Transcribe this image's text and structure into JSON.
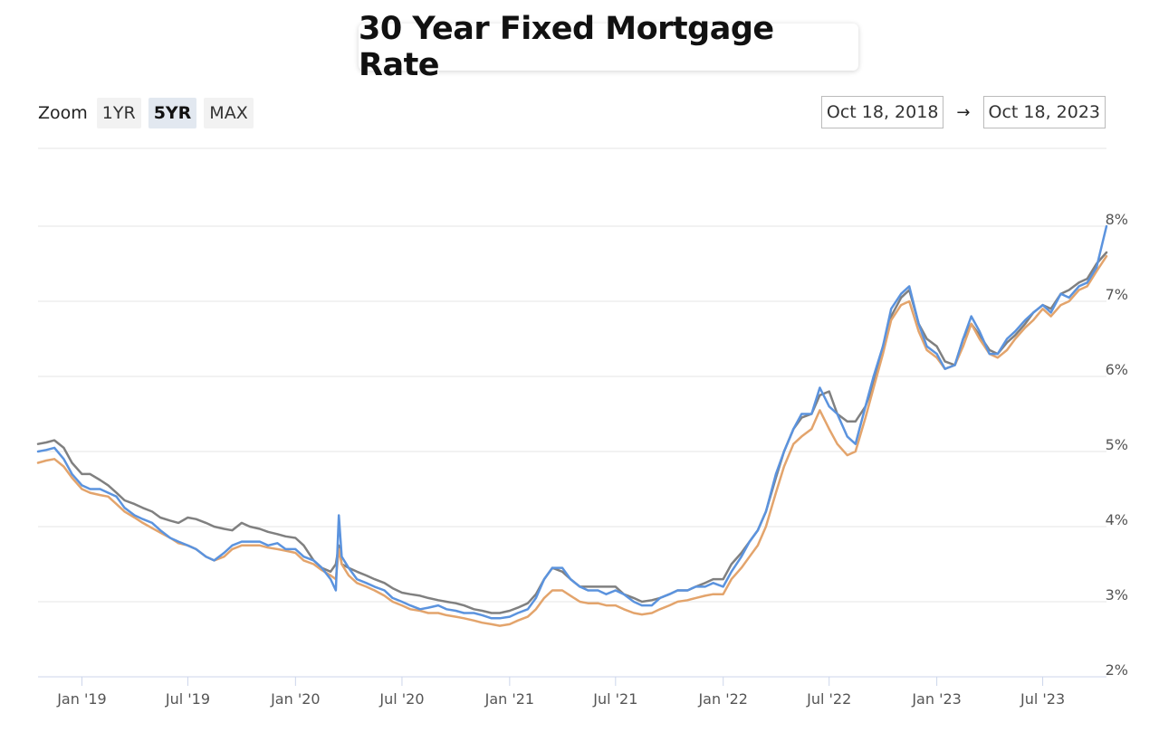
{
  "title": "30 Year Fixed Mortgage Rate",
  "zoom": {
    "label": "Zoom",
    "options": [
      "1YR",
      "5YR",
      "MAX"
    ],
    "selected": "5YR"
  },
  "range": {
    "from": "Oct 18, 2018",
    "arrow": "→",
    "to": "Oct 18, 2023"
  },
  "chart_data": {
    "type": "line",
    "title": "30 Year Fixed Mortgage Rate",
    "xlabel": "",
    "ylabel": "",
    "ylim": [
      2,
      8
    ],
    "y_ticks": [
      2,
      3,
      4,
      5,
      6,
      7,
      8
    ],
    "y_tick_labels": [
      "2%",
      "3%",
      "4%",
      "5%",
      "6%",
      "7%",
      "8%"
    ],
    "x_ticks": [
      "2019-01-01",
      "2019-07-01",
      "2020-01-01",
      "2020-07-01",
      "2021-01-01",
      "2021-07-01",
      "2022-01-01",
      "2022-07-01",
      "2023-01-01",
      "2023-07-01"
    ],
    "x_tick_labels": [
      "Jan '19",
      "Jul '19",
      "Jan '20",
      "Jul '20",
      "Jan '21",
      "Jul '21",
      "Jan '22",
      "Jul '22",
      "Jan '23",
      "Jul '23"
    ],
    "xlim": [
      "2018-10-18",
      "2023-10-18"
    ],
    "grid": true,
    "legend": "none",
    "series": [
      {
        "color": "#5b93de",
        "x": [
          "2018-10-18",
          "2018-11-01",
          "2018-11-15",
          "2018-12-01",
          "2018-12-15",
          "2019-01-01",
          "2019-01-15",
          "2019-02-01",
          "2019-02-15",
          "2019-03-01",
          "2019-03-15",
          "2019-04-01",
          "2019-04-15",
          "2019-05-01",
          "2019-05-15",
          "2019-06-01",
          "2019-06-15",
          "2019-07-01",
          "2019-07-15",
          "2019-08-01",
          "2019-08-15",
          "2019-09-01",
          "2019-09-15",
          "2019-10-01",
          "2019-10-15",
          "2019-11-01",
          "2019-11-15",
          "2019-12-01",
          "2019-12-15",
          "2020-01-01",
          "2020-01-15",
          "2020-02-01",
          "2020-02-15",
          "2020-03-01",
          "2020-03-10",
          "2020-03-15",
          "2020-03-20",
          "2020-04-01",
          "2020-04-15",
          "2020-05-01",
          "2020-05-15",
          "2020-06-01",
          "2020-06-15",
          "2020-07-01",
          "2020-07-15",
          "2020-08-01",
          "2020-08-15",
          "2020-09-01",
          "2020-09-15",
          "2020-10-01",
          "2020-10-15",
          "2020-11-01",
          "2020-11-15",
          "2020-12-01",
          "2020-12-15",
          "2021-01-01",
          "2021-01-15",
          "2021-02-01",
          "2021-02-15",
          "2021-03-01",
          "2021-03-15",
          "2021-04-01",
          "2021-04-15",
          "2021-05-01",
          "2021-05-15",
          "2021-06-01",
          "2021-06-15",
          "2021-07-01",
          "2021-07-15",
          "2021-08-01",
          "2021-08-15",
          "2021-09-01",
          "2021-09-15",
          "2021-10-01",
          "2021-10-15",
          "2021-11-01",
          "2021-11-15",
          "2021-12-01",
          "2021-12-15",
          "2022-01-01",
          "2022-01-15",
          "2022-02-01",
          "2022-02-15",
          "2022-03-01",
          "2022-03-15",
          "2022-04-01",
          "2022-04-15",
          "2022-05-01",
          "2022-05-15",
          "2022-06-01",
          "2022-06-15",
          "2022-07-01",
          "2022-07-15",
          "2022-08-01",
          "2022-08-15",
          "2022-09-01",
          "2022-09-15",
          "2022-10-01",
          "2022-10-15",
          "2022-11-01",
          "2022-11-15",
          "2022-12-01",
          "2022-12-15",
          "2023-01-01",
          "2023-01-15",
          "2023-02-01",
          "2023-02-15",
          "2023-03-01",
          "2023-03-15",
          "2023-04-01",
          "2023-04-15",
          "2023-05-01",
          "2023-05-15",
          "2023-06-01",
          "2023-06-15",
          "2023-07-01",
          "2023-07-15",
          "2023-08-01",
          "2023-08-15",
          "2023-09-01",
          "2023-09-15",
          "2023-10-01",
          "2023-10-18"
        ],
        "values": [
          5.0,
          5.02,
          5.05,
          4.9,
          4.7,
          4.55,
          4.5,
          4.5,
          4.45,
          4.4,
          4.25,
          4.15,
          4.1,
          4.05,
          3.95,
          3.85,
          3.8,
          3.75,
          3.7,
          3.6,
          3.55,
          3.65,
          3.75,
          3.8,
          3.8,
          3.8,
          3.75,
          3.78,
          3.7,
          3.7,
          3.6,
          3.55,
          3.45,
          3.3,
          3.15,
          4.15,
          3.6,
          3.45,
          3.3,
          3.25,
          3.2,
          3.15,
          3.05,
          3.0,
          2.95,
          2.9,
          2.92,
          2.95,
          2.9,
          2.88,
          2.85,
          2.85,
          2.82,
          2.78,
          2.78,
          2.8,
          2.85,
          2.9,
          3.05,
          3.3,
          3.45,
          3.45,
          3.3,
          3.2,
          3.15,
          3.15,
          3.1,
          3.15,
          3.1,
          3.0,
          2.95,
          2.95,
          3.05,
          3.1,
          3.15,
          3.15,
          3.2,
          3.2,
          3.25,
          3.2,
          3.4,
          3.6,
          3.8,
          3.95,
          4.2,
          4.7,
          5.0,
          5.3,
          5.5,
          5.5,
          5.85,
          5.6,
          5.5,
          5.2,
          5.1,
          5.6,
          6.0,
          6.4,
          6.9,
          7.1,
          7.2,
          6.7,
          6.4,
          6.3,
          6.1,
          6.15,
          6.5,
          6.8,
          6.6,
          6.3,
          6.3,
          6.5,
          6.6,
          6.75,
          6.85,
          6.95,
          6.85,
          7.1,
          7.05,
          7.2,
          7.25,
          7.45,
          8.0
        ]
      },
      {
        "color": "#e3a46c",
        "x": [
          "2018-10-18",
          "2018-11-01",
          "2018-11-15",
          "2018-12-01",
          "2018-12-15",
          "2019-01-01",
          "2019-01-15",
          "2019-02-01",
          "2019-02-15",
          "2019-03-01",
          "2019-03-15",
          "2019-04-01",
          "2019-04-15",
          "2019-05-01",
          "2019-05-15",
          "2019-06-01",
          "2019-06-15",
          "2019-07-01",
          "2019-07-15",
          "2019-08-01",
          "2019-08-15",
          "2019-09-01",
          "2019-09-15",
          "2019-10-01",
          "2019-10-15",
          "2019-11-01",
          "2019-11-15",
          "2019-12-01",
          "2019-12-15",
          "2020-01-01",
          "2020-01-15",
          "2020-02-01",
          "2020-02-15",
          "2020-03-01",
          "2020-03-10",
          "2020-03-15",
          "2020-03-20",
          "2020-04-01",
          "2020-04-15",
          "2020-05-01",
          "2020-05-15",
          "2020-06-01",
          "2020-06-15",
          "2020-07-01",
          "2020-07-15",
          "2020-08-01",
          "2020-08-15",
          "2020-09-01",
          "2020-09-15",
          "2020-10-01",
          "2020-10-15",
          "2020-11-01",
          "2020-11-15",
          "2020-12-01",
          "2020-12-15",
          "2021-01-01",
          "2021-01-15",
          "2021-02-01",
          "2021-02-15",
          "2021-03-01",
          "2021-03-15",
          "2021-04-01",
          "2021-04-15",
          "2021-05-01",
          "2021-05-15",
          "2021-06-01",
          "2021-06-15",
          "2021-07-01",
          "2021-07-15",
          "2021-08-01",
          "2021-08-15",
          "2021-09-01",
          "2021-09-15",
          "2021-10-01",
          "2021-10-15",
          "2021-11-01",
          "2021-11-15",
          "2021-12-01",
          "2021-12-15",
          "2022-01-01",
          "2022-01-15",
          "2022-02-01",
          "2022-02-15",
          "2022-03-01",
          "2022-03-15",
          "2022-04-01",
          "2022-04-15",
          "2022-05-01",
          "2022-05-15",
          "2022-06-01",
          "2022-06-15",
          "2022-07-01",
          "2022-07-15",
          "2022-08-01",
          "2022-08-15",
          "2022-09-01",
          "2022-09-15",
          "2022-10-01",
          "2022-10-15",
          "2022-11-01",
          "2022-11-15",
          "2022-12-01",
          "2022-12-15",
          "2023-01-01",
          "2023-01-15",
          "2023-02-01",
          "2023-02-15",
          "2023-03-01",
          "2023-03-15",
          "2023-04-01",
          "2023-04-15",
          "2023-05-01",
          "2023-05-15",
          "2023-06-01",
          "2023-06-15",
          "2023-07-01",
          "2023-07-15",
          "2023-08-01",
          "2023-08-15",
          "2023-09-01",
          "2023-09-15",
          "2023-10-01",
          "2023-10-18"
        ],
        "values": [
          4.85,
          4.88,
          4.9,
          4.8,
          4.65,
          4.5,
          4.45,
          4.42,
          4.4,
          4.3,
          4.2,
          4.12,
          4.05,
          3.98,
          3.92,
          3.85,
          3.78,
          3.75,
          3.7,
          3.6,
          3.55,
          3.6,
          3.7,
          3.75,
          3.75,
          3.75,
          3.72,
          3.7,
          3.68,
          3.65,
          3.55,
          3.5,
          3.42,
          3.35,
          3.3,
          3.7,
          3.5,
          3.35,
          3.25,
          3.2,
          3.15,
          3.08,
          3.0,
          2.95,
          2.9,
          2.88,
          2.85,
          2.85,
          2.82,
          2.8,
          2.78,
          2.75,
          2.72,
          2.7,
          2.68,
          2.7,
          2.75,
          2.8,
          2.9,
          3.05,
          3.15,
          3.15,
          3.08,
          3.0,
          2.98,
          2.98,
          2.95,
          2.95,
          2.9,
          2.85,
          2.83,
          2.85,
          2.9,
          2.95,
          3.0,
          3.02,
          3.05,
          3.08,
          3.1,
          3.1,
          3.3,
          3.45,
          3.6,
          3.75,
          4.0,
          4.45,
          4.8,
          5.1,
          5.2,
          5.3,
          5.55,
          5.3,
          5.1,
          4.95,
          5.0,
          5.45,
          5.85,
          6.3,
          6.75,
          6.95,
          7.0,
          6.6,
          6.35,
          6.25,
          6.1,
          6.15,
          6.4,
          6.7,
          6.5,
          6.3,
          6.25,
          6.35,
          6.5,
          6.65,
          6.75,
          6.9,
          6.8,
          6.95,
          7.0,
          7.15,
          7.2,
          7.4,
          7.6
        ]
      },
      {
        "color": "#808080",
        "x": [
          "2018-10-18",
          "2018-11-01",
          "2018-11-15",
          "2018-12-01",
          "2018-12-15",
          "2019-01-01",
          "2019-01-15",
          "2019-02-01",
          "2019-02-15",
          "2019-03-01",
          "2019-03-15",
          "2019-04-01",
          "2019-04-15",
          "2019-05-01",
          "2019-05-15",
          "2019-06-01",
          "2019-06-15",
          "2019-07-01",
          "2019-07-15",
          "2019-08-01",
          "2019-08-15",
          "2019-09-01",
          "2019-09-15",
          "2019-10-01",
          "2019-10-15",
          "2019-11-01",
          "2019-11-15",
          "2019-12-01",
          "2019-12-15",
          "2020-01-01",
          "2020-01-15",
          "2020-02-01",
          "2020-02-15",
          "2020-03-01",
          "2020-03-10",
          "2020-03-15",
          "2020-03-20",
          "2020-04-01",
          "2020-04-15",
          "2020-05-01",
          "2020-05-15",
          "2020-06-01",
          "2020-06-15",
          "2020-07-01",
          "2020-07-15",
          "2020-08-01",
          "2020-08-15",
          "2020-09-01",
          "2020-09-15",
          "2020-10-01",
          "2020-10-15",
          "2020-11-01",
          "2020-11-15",
          "2020-12-01",
          "2020-12-15",
          "2021-01-01",
          "2021-01-15",
          "2021-02-01",
          "2021-02-15",
          "2021-03-01",
          "2021-03-15",
          "2021-04-01",
          "2021-04-15",
          "2021-05-01",
          "2021-05-15",
          "2021-06-01",
          "2021-06-15",
          "2021-07-01",
          "2021-07-15",
          "2021-08-01",
          "2021-08-15",
          "2021-09-01",
          "2021-09-15",
          "2021-10-01",
          "2021-10-15",
          "2021-11-01",
          "2021-11-15",
          "2021-12-01",
          "2021-12-15",
          "2022-01-01",
          "2022-01-15",
          "2022-02-01",
          "2022-02-15",
          "2022-03-01",
          "2022-03-15",
          "2022-04-01",
          "2022-04-15",
          "2022-05-01",
          "2022-05-15",
          "2022-06-01",
          "2022-06-15",
          "2022-07-01",
          "2022-07-15",
          "2022-08-01",
          "2022-08-15",
          "2022-09-01",
          "2022-09-15",
          "2022-10-01",
          "2022-10-15",
          "2022-11-01",
          "2022-11-15",
          "2022-12-01",
          "2022-12-15",
          "2023-01-01",
          "2023-01-15",
          "2023-02-01",
          "2023-02-15",
          "2023-03-01",
          "2023-03-15",
          "2023-04-01",
          "2023-04-15",
          "2023-05-01",
          "2023-05-15",
          "2023-06-01",
          "2023-06-15",
          "2023-07-01",
          "2023-07-15",
          "2023-08-01",
          "2023-08-15",
          "2023-09-01",
          "2023-09-15",
          "2023-10-01",
          "2023-10-18"
        ],
        "values": [
          5.1,
          5.12,
          5.15,
          5.05,
          4.85,
          4.7,
          4.7,
          4.62,
          4.55,
          4.45,
          4.35,
          4.3,
          4.25,
          4.2,
          4.12,
          4.08,
          4.05,
          4.12,
          4.1,
          4.05,
          4.0,
          3.97,
          3.95,
          4.05,
          4.0,
          3.97,
          3.93,
          3.9,
          3.87,
          3.85,
          3.75,
          3.55,
          3.45,
          3.4,
          3.5,
          3.75,
          3.5,
          3.45,
          3.4,
          3.35,
          3.3,
          3.25,
          3.18,
          3.12,
          3.1,
          3.08,
          3.05,
          3.02,
          3.0,
          2.98,
          2.95,
          2.9,
          2.88,
          2.85,
          2.85,
          2.88,
          2.92,
          2.98,
          3.1,
          3.3,
          3.45,
          3.4,
          3.3,
          3.2,
          3.2,
          3.2,
          3.2,
          3.2,
          3.1,
          3.05,
          3.0,
          3.02,
          3.05,
          3.1,
          3.15,
          3.15,
          3.2,
          3.25,
          3.3,
          3.3,
          3.5,
          3.65,
          3.8,
          3.95,
          4.2,
          4.65,
          5.0,
          5.3,
          5.45,
          5.5,
          5.75,
          5.8,
          5.5,
          5.4,
          5.4,
          5.6,
          5.9,
          6.4,
          6.8,
          7.05,
          7.15,
          6.7,
          6.5,
          6.4,
          6.2,
          6.15,
          6.5,
          6.7,
          6.55,
          6.35,
          6.3,
          6.45,
          6.55,
          6.7,
          6.85,
          6.95,
          6.9,
          7.1,
          7.15,
          7.25,
          7.3,
          7.5,
          7.65
        ]
      }
    ]
  }
}
